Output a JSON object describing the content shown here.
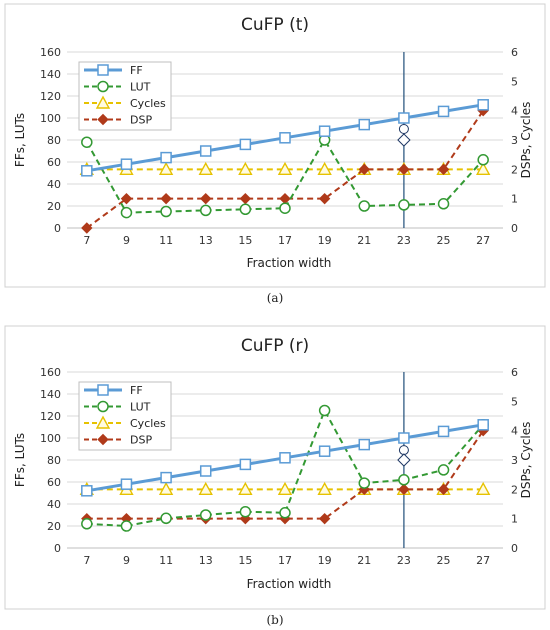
{
  "chart_data": [
    {
      "type": "line",
      "title": "CuFP (t)",
      "sublabel": "(a)",
      "xlabel": "Fraction width",
      "ylabel_left": "FFs, LUTs",
      "ylabel_right": "DSPs, Cycles",
      "ylim_left": [
        0,
        160
      ],
      "ylim_right": [
        0,
        6
      ],
      "yticks_left": [
        0,
        20,
        40,
        60,
        80,
        100,
        120,
        140,
        160
      ],
      "yticks_right": [
        0,
        1,
        2,
        3,
        4,
        5,
        6
      ],
      "x": [
        7,
        9,
        11,
        13,
        15,
        17,
        19,
        21,
        23,
        25,
        27
      ],
      "grid": true,
      "legend_position": "top-left",
      "reference_line_x": 23,
      "colors": {
        "FF": "#5b9bd5",
        "LUT": "#339933",
        "Cycles": "#e6c200",
        "DSP": "#b03a1a",
        "ref": "#1f4e79"
      },
      "series": [
        {
          "name": "FF",
          "axis": "left",
          "style": "solid",
          "marker": "square",
          "values": [
            52,
            58,
            64,
            70,
            76,
            82,
            88,
            94,
            100,
            106,
            112
          ]
        },
        {
          "name": "LUT",
          "axis": "left",
          "style": "dashed",
          "marker": "circle",
          "values": [
            78,
            14,
            15,
            16,
            17,
            18,
            80,
            20,
            21,
            22,
            62
          ]
        },
        {
          "name": "Cycles",
          "axis": "right",
          "style": "dashed",
          "marker": "triangle",
          "values": [
            2,
            2,
            2,
            2,
            2,
            2,
            2,
            2,
            2,
            2,
            2
          ]
        },
        {
          "name": "DSP",
          "axis": "right",
          "style": "dashed",
          "marker": "diamond",
          "values": [
            0,
            1,
            1,
            1,
            1,
            1,
            1,
            2,
            2,
            2,
            4
          ]
        }
      ],
      "annotations": [
        {
          "x": 23,
          "value": 90,
          "axis": "left",
          "marker": "circle-open"
        },
        {
          "x": 23,
          "value": 3,
          "axis": "right",
          "marker": "diamond-open"
        }
      ]
    },
    {
      "type": "line",
      "title": "CuFP (r)",
      "sublabel": "(b)",
      "xlabel": "Fraction width",
      "ylabel_left": "FFs, LUTs",
      "ylabel_right": "DSPs, Cycles",
      "ylim_left": [
        0,
        160
      ],
      "ylim_right": [
        0,
        6
      ],
      "yticks_left": [
        0,
        20,
        40,
        60,
        80,
        100,
        120,
        140,
        160
      ],
      "yticks_right": [
        0,
        1,
        2,
        3,
        4,
        5,
        6
      ],
      "x": [
        7,
        9,
        11,
        13,
        15,
        17,
        19,
        21,
        23,
        25,
        27
      ],
      "grid": true,
      "legend_position": "top-left",
      "reference_line_x": 23,
      "colors": {
        "FF": "#5b9bd5",
        "LUT": "#339933",
        "Cycles": "#e6c200",
        "DSP": "#b03a1a",
        "ref": "#1f4e79"
      },
      "series": [
        {
          "name": "FF",
          "axis": "left",
          "style": "solid",
          "marker": "square",
          "values": [
            52,
            58,
            64,
            70,
            76,
            82,
            88,
            94,
            100,
            106,
            112
          ]
        },
        {
          "name": "LUT",
          "axis": "left",
          "style": "dashed",
          "marker": "circle",
          "values": [
            22,
            20,
            27,
            30,
            33,
            32,
            125,
            59,
            62,
            71,
            112
          ]
        },
        {
          "name": "Cycles",
          "axis": "right",
          "style": "dashed",
          "marker": "triangle",
          "values": [
            2,
            2,
            2,
            2,
            2,
            2,
            2,
            2,
            2,
            2,
            2
          ]
        },
        {
          "name": "DSP",
          "axis": "right",
          "style": "dashed",
          "marker": "diamond",
          "values": [
            1,
            1,
            1,
            1,
            1,
            1,
            1,
            2,
            2,
            2,
            4
          ]
        }
      ],
      "annotations": [
        {
          "x": 23,
          "value": 89,
          "axis": "left",
          "marker": "circle-open"
        },
        {
          "x": 23,
          "value": 3,
          "axis": "right",
          "marker": "diamond-open"
        }
      ]
    }
  ]
}
